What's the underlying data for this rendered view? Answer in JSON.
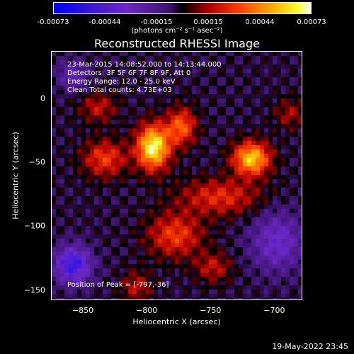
{
  "colorbar": {
    "ticks": [
      "-0.00073",
      "-0.00044",
      "-0.00015",
      "0.00015",
      "0.00044",
      "0.00073"
    ],
    "units": "(photons cm⁻² s⁻¹ asec⁻²)"
  },
  "chart_data": {
    "type": "heatmap",
    "title": "Reconstructed RHESSI Image",
    "xlabel": "Heliocentric X (arcsec)",
    "ylabel": "Heliocentric Y (arcsec)",
    "xlim": [
      -875,
      -678
    ],
    "ylim": [
      -158,
      37
    ],
    "xticks": [
      -850,
      -800,
      -750,
      -700
    ],
    "yticks": [
      0,
      -50,
      -100,
      -150
    ],
    "colorscale_range": [
      -0.00073,
      0.00073
    ],
    "peak": [
      -797,
      -36
    ],
    "info_lines": [
      "23-Mar-2015 14:08:52.000 to 14:13:44.000",
      "Detectors: 3F 5F 6F 7F 8F 9F, Att 0",
      "Energy Range: 12.0 - 25.0 keV",
      "Clean    Total counts: 4.73E+03"
    ],
    "peak_text": "Position of Peak = [-797,-36]",
    "blobs": [
      {
        "x": -797,
        "y": -36,
        "sx": 9,
        "sy": 12,
        "a": 1.0
      },
      {
        "x": -720,
        "y": -45,
        "sx": 10,
        "sy": 9,
        "a": 0.85
      },
      {
        "x": -775,
        "y": -20,
        "sx": 8,
        "sy": 10,
        "a": 0.55
      },
      {
        "x": -835,
        "y": -45,
        "sx": 12,
        "sy": 10,
        "a": 0.45
      },
      {
        "x": -745,
        "y": -75,
        "sx": 22,
        "sy": 10,
        "a": 0.4
      },
      {
        "x": -780,
        "y": -105,
        "sx": 15,
        "sy": 12,
        "a": 0.45
      },
      {
        "x": -840,
        "y": -5,
        "sx": 10,
        "sy": 8,
        "a": 0.3
      },
      {
        "x": -810,
        "y": -145,
        "sx": 8,
        "sy": 8,
        "a": 0.3
      },
      {
        "x": -690,
        "y": -10,
        "sx": 8,
        "sy": 8,
        "a": 0.25
      },
      {
        "x": -750,
        "y": -130,
        "sx": 10,
        "sy": 8,
        "a": 0.3
      },
      {
        "x": -860,
        "y": -128,
        "sx": 10,
        "sy": 10,
        "a": -0.65
      },
      {
        "x": -700,
        "y": -110,
        "sx": 14,
        "sy": 16,
        "a": -0.4
      },
      {
        "x": -860,
        "y": 20,
        "sx": 8,
        "sy": 8,
        "a": -0.3
      }
    ]
  },
  "timestamp": "19-May-2022 23:45"
}
